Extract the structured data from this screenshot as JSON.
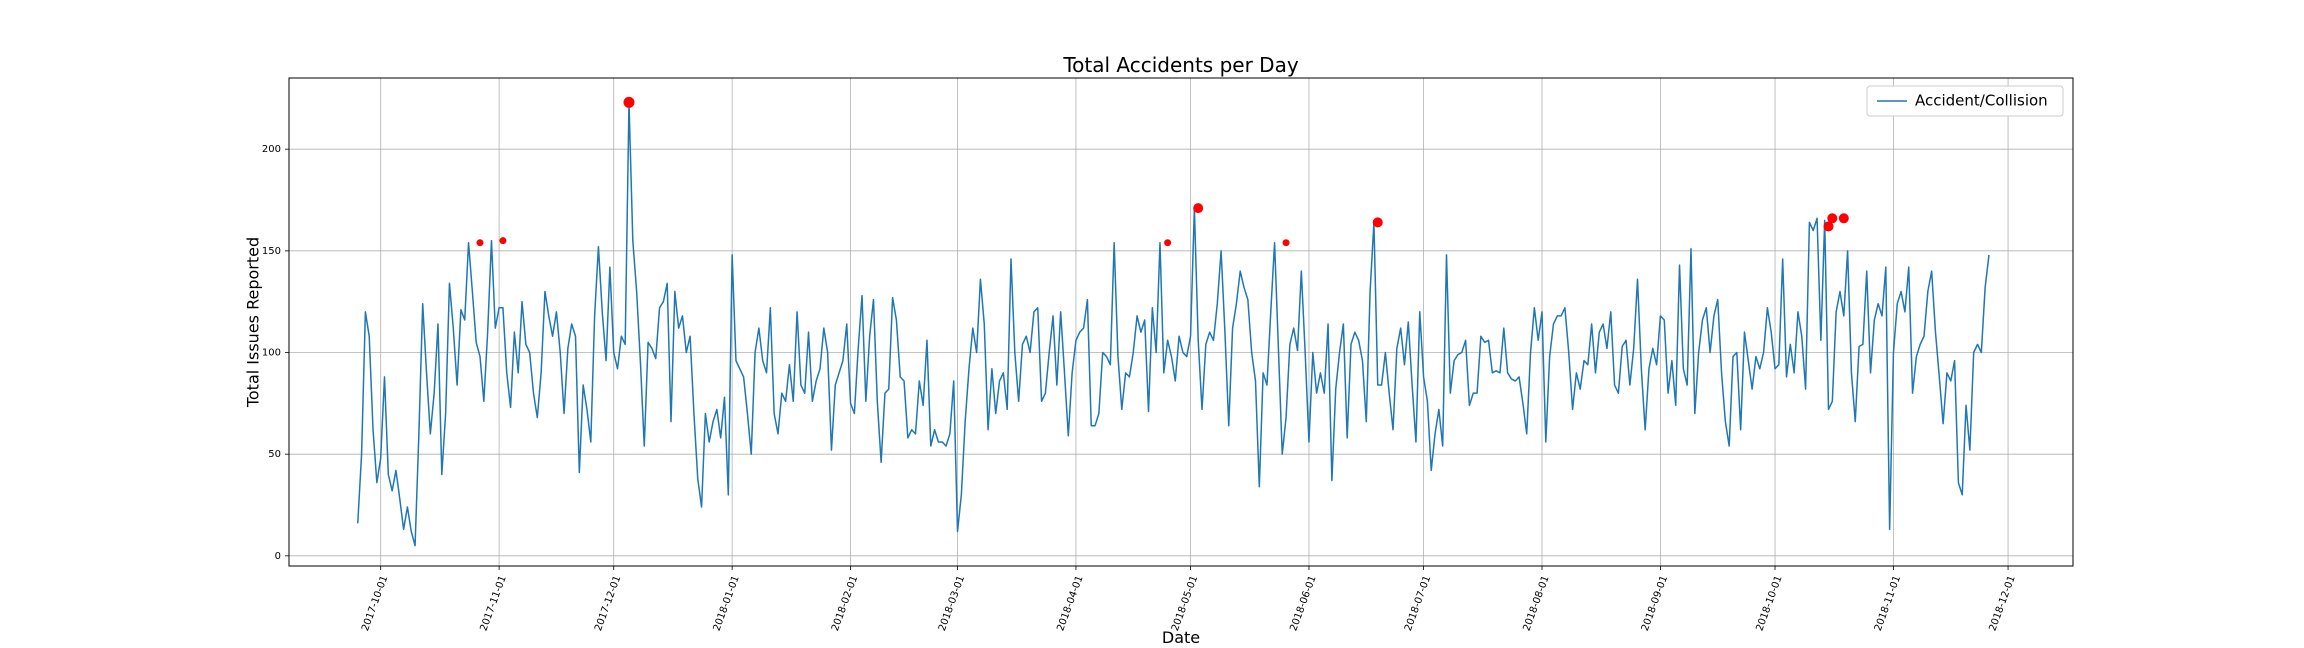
{
  "chart_data": {
    "type": "line",
    "title": "Total Accidents per Day",
    "xlabel": "Date",
    "ylabel": "Total Issues Reported",
    "x_start": "2017-09-25",
    "x_end": "2018-11-30",
    "xlim": [
      "2017-09-07",
      "2018-12-18"
    ],
    "ylim": [
      -5,
      235
    ],
    "yticks": [
      0,
      50,
      100,
      150,
      200
    ],
    "xtick_labels": [
      "2017-10-01",
      "2017-11-01",
      "2017-12-01",
      "2018-01-01",
      "2018-02-01",
      "2018-03-01",
      "2018-04-01",
      "2018-05-01",
      "2018-06-01",
      "2018-07-01",
      "2018-08-01",
      "2018-09-01",
      "2018-10-01",
      "2018-11-01",
      "2018-12-01"
    ],
    "grid": true,
    "legend_position": "top-right",
    "series": [
      {
        "name": "Accident/Collision",
        "color": "#1f77b4",
        "values": [
          16,
          50,
          120,
          108,
          62,
          36,
          48,
          88,
          40,
          32,
          42,
          28,
          13,
          24,
          12,
          5,
          60,
          124,
          90,
          60,
          80,
          114,
          40,
          70,
          134,
          112,
          84,
          121,
          116,
          154,
          130,
          105,
          98,
          76,
          110,
          155,
          112,
          122,
          122,
          90,
          73,
          110,
          90,
          125,
          104,
          100,
          80,
          68,
          90,
          130,
          118,
          108,
          120,
          100,
          70,
          102,
          114,
          108,
          41,
          84,
          72,
          56,
          118,
          152,
          120,
          96,
          142,
          100,
          92,
          108,
          104,
          223,
          155,
          130,
          95,
          54,
          105,
          102,
          97,
          122,
          125,
          134,
          66,
          130,
          112,
          118,
          100,
          108,
          70,
          38,
          24,
          70,
          56,
          66,
          72,
          58,
          78,
          30,
          148,
          96,
          92,
          88,
          70,
          50,
          100,
          112,
          96,
          90,
          122,
          70,
          60,
          80,
          76,
          94,
          76,
          120,
          84,
          80,
          110,
          76,
          86,
          92,
          112,
          100,
          52,
          84,
          90,
          96,
          114,
          75,
          70,
          102,
          128,
          76,
          108,
          126,
          76,
          46,
          80,
          82,
          127,
          116,
          88,
          86,
          58,
          62,
          60,
          86,
          74,
          106,
          54,
          62,
          56,
          56,
          54,
          60,
          86,
          12,
          30,
          66,
          92,
          112,
          100,
          136,
          114,
          62,
          92,
          70,
          86,
          90,
          72,
          146,
          100,
          76,
          104,
          108,
          100,
          120,
          122,
          76,
          80,
          100,
          118,
          84,
          120,
          90,
          59,
          90,
          106,
          110,
          112,
          126,
          64,
          64,
          70,
          100,
          98,
          94,
          154,
          98,
          72,
          90,
          88,
          100,
          118,
          110,
          116,
          71,
          122,
          100,
          154,
          90,
          106,
          98,
          86,
          108,
          100,
          98,
          108,
          171,
          106,
          72,
          104,
          110,
          106,
          124,
          150,
          110,
          64,
          112,
          124,
          140,
          132,
          126,
          100,
          86,
          34,
          90,
          84,
          120,
          154,
          102,
          50,
          68,
          104,
          112,
          101,
          140,
          100,
          56,
          100,
          80,
          90,
          80,
          114,
          37,
          82,
          100,
          114,
          58,
          104,
          110,
          106,
          96,
          66,
          130,
          164,
          84,
          84,
          100,
          80,
          62,
          102,
          112,
          94,
          115,
          84,
          56,
          120,
          88,
          76,
          42,
          60,
          72,
          54,
          148,
          80,
          96,
          99,
          100,
          106,
          74,
          80,
          80,
          108,
          105,
          106,
          90,
          91,
          90,
          112,
          90,
          87,
          86,
          88,
          75,
          60,
          100,
          122,
          106,
          120,
          56,
          98,
          114,
          118,
          118,
          122,
          100,
          72,
          90,
          82,
          96,
          94,
          114,
          90,
          110,
          114,
          102,
          120,
          84,
          80,
          103,
          106,
          84,
          102,
          136,
          92,
          62,
          92,
          102,
          94,
          118,
          116,
          80,
          96,
          74,
          143,
          92,
          84,
          151,
          70,
          100,
          116,
          122,
          100,
          118,
          126,
          90,
          66,
          54,
          98,
          100,
          62,
          110,
          96,
          82,
          98,
          92,
          100,
          122,
          110,
          92,
          94,
          146,
          88,
          104,
          90,
          120,
          108,
          82,
          164,
          160,
          166,
          106,
          165,
          72,
          76,
          120,
          130,
          118,
          150,
          90,
          66,
          103,
          104,
          140,
          90,
          116,
          124,
          118,
          142,
          13,
          100,
          124,
          130,
          120,
          142,
          80,
          98,
          104,
          108,
          130,
          140,
          110,
          88,
          65,
          90,
          86,
          96,
          36,
          30,
          74,
          52,
          100,
          104,
          100,
          132,
          148
        ],
        "outliers": [
          {
            "date": "2017-10-27",
            "value": 154
          },
          {
            "date": "2017-11-02",
            "value": 155
          },
          {
            "date": "2017-12-05",
            "value": 223
          },
          {
            "date": "2018-04-25",
            "value": 154
          },
          {
            "date": "2018-05-03",
            "value": 171
          },
          {
            "date": "2018-05-26",
            "value": 154
          },
          {
            "date": "2018-06-19",
            "value": 164
          },
          {
            "date": "2018-10-15",
            "value": 162
          },
          {
            "date": "2018-10-16",
            "value": 166
          },
          {
            "date": "2018-10-19",
            "value": 166
          }
        ],
        "outlier_color": "#ff0000"
      }
    ]
  }
}
